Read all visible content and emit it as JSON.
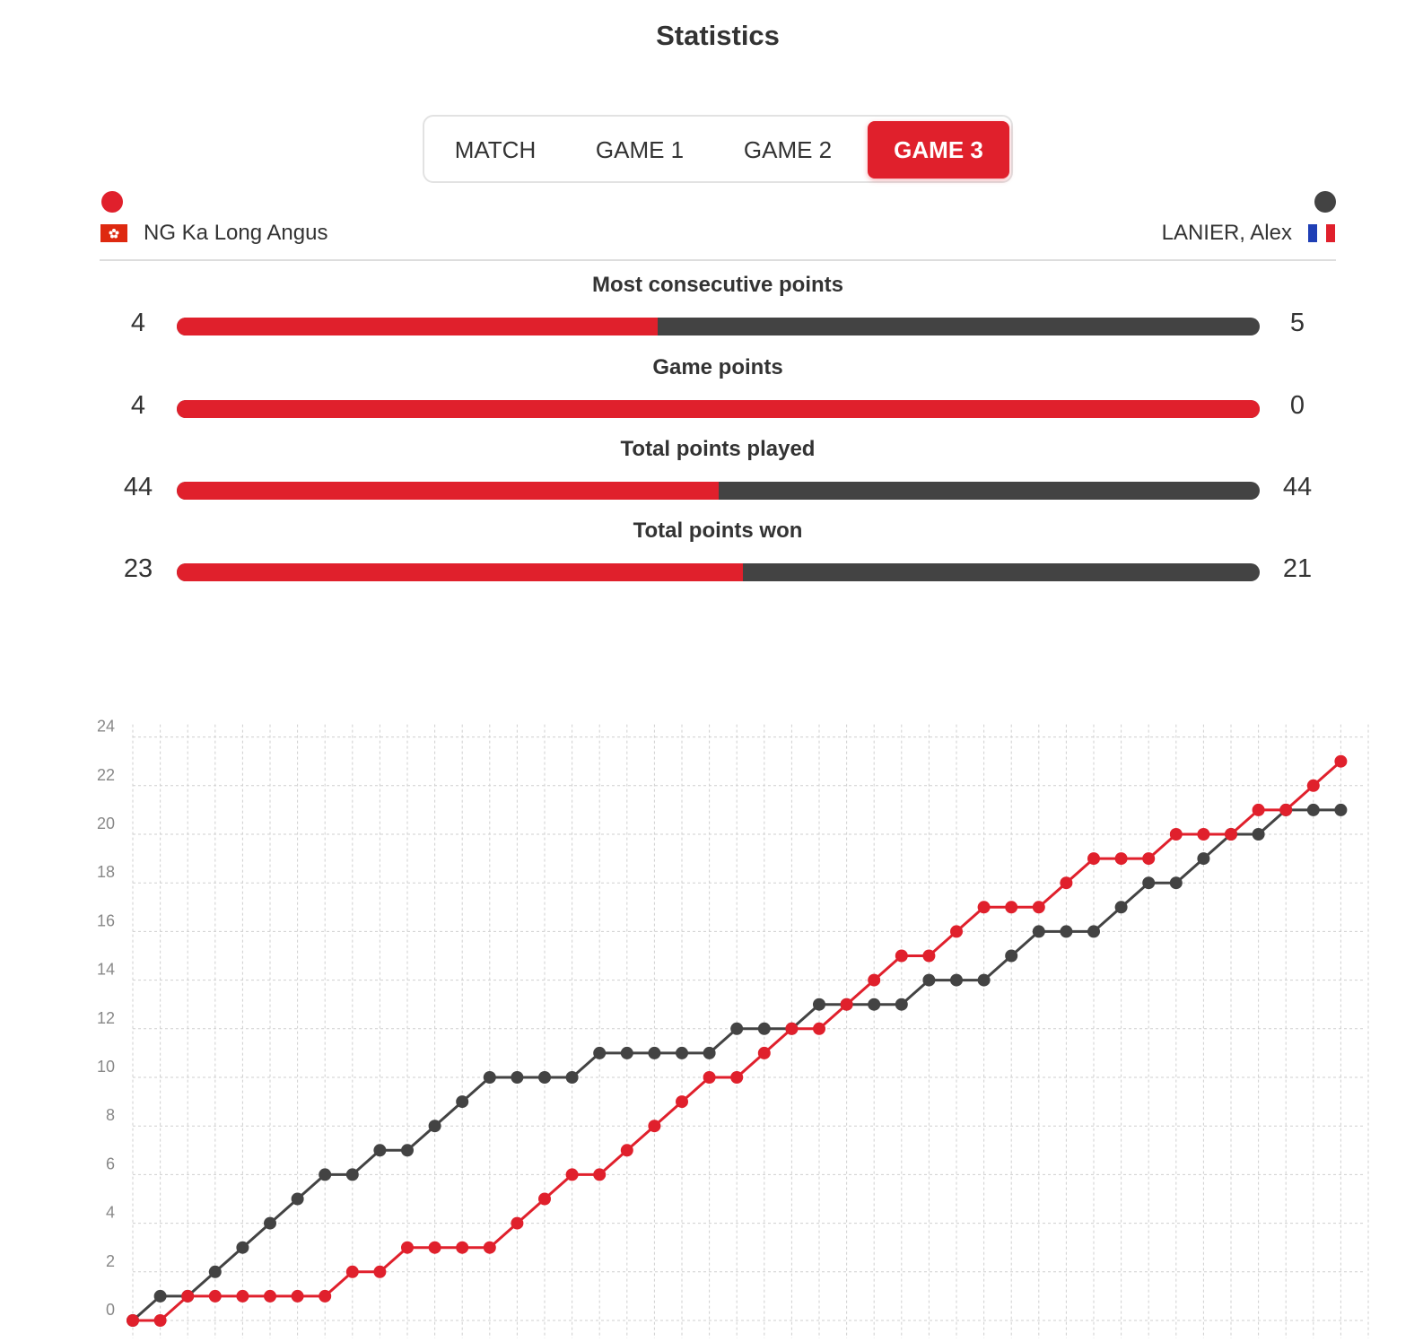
{
  "title": "Statistics",
  "tabs": [
    "MATCH",
    "GAME 1",
    "GAME 2",
    "GAME 3"
  ],
  "active_tab": 3,
  "players": {
    "left": {
      "name": "NG Ka Long Angus",
      "color": "#e0202c",
      "flag": "hong-kong-flag-icon"
    },
    "right": {
      "name": "LANIER, Alex",
      "color": "#434343",
      "flag": "france-flag-icon"
    }
  },
  "stats": [
    {
      "label": "Most consecutive points",
      "left": "4",
      "right": "5",
      "left_fraction": 0.444
    },
    {
      "label": "Game points",
      "left": "4",
      "right": "0",
      "left_fraction": 1.0
    },
    {
      "label": "Total points played",
      "left": "44",
      "right": "44",
      "left_fraction": 0.5
    },
    {
      "label": "Total points won",
      "left": "23",
      "right": "21",
      "left_fraction": 0.523
    }
  ],
  "chart_data": {
    "type": "line",
    "ylim": [
      0,
      24
    ],
    "y_ticks": [
      "0",
      "2",
      "4",
      "6",
      "8",
      "10",
      "12",
      "14",
      "16",
      "18",
      "20",
      "22",
      "24"
    ],
    "grid": true,
    "x": [
      0,
      1,
      2,
      3,
      4,
      5,
      6,
      7,
      8,
      9,
      10,
      11,
      12,
      13,
      14,
      15,
      16,
      17,
      18,
      19,
      20,
      21,
      22,
      23,
      24,
      25,
      26,
      27,
      28,
      29,
      30,
      31,
      32,
      33,
      34,
      35,
      36,
      37,
      38,
      39,
      40,
      41,
      42,
      43,
      44
    ],
    "series": [
      {
        "name": "NG Ka Long Angus",
        "color": "#e0202c",
        "values": [
          0,
          0,
          1,
          1,
          1,
          1,
          1,
          1,
          2,
          2,
          3,
          3,
          3,
          3,
          4,
          5,
          6,
          6,
          7,
          8,
          9,
          10,
          10,
          11,
          12,
          12,
          13,
          14,
          15,
          15,
          16,
          17,
          17,
          17,
          18,
          19,
          19,
          19,
          20,
          20,
          20,
          21,
          21,
          22,
          23
        ]
      },
      {
        "name": "LANIER, Alex",
        "color": "#434343",
        "values": [
          0,
          1,
          1,
          2,
          3,
          4,
          5,
          6,
          6,
          7,
          7,
          8,
          9,
          10,
          10,
          10,
          10,
          11,
          11,
          11,
          11,
          11,
          12,
          12,
          12,
          13,
          13,
          13,
          13,
          14,
          14,
          14,
          15,
          16,
          16,
          16,
          17,
          18,
          18,
          19,
          20,
          20,
          21,
          21,
          21
        ]
      }
    ]
  }
}
